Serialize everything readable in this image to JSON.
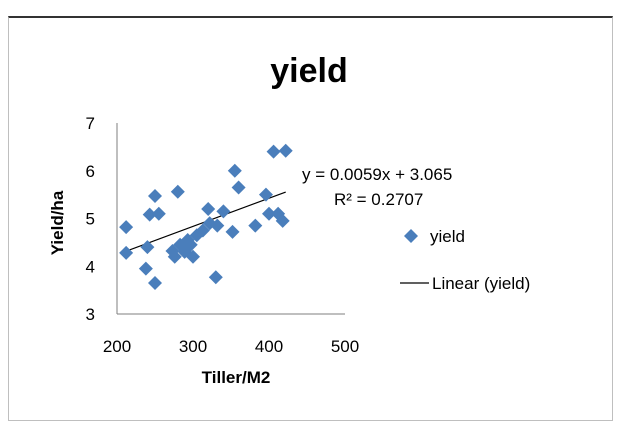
{
  "chart_data": {
    "type": "scatter",
    "title": "yield",
    "xlabel": "Tiller/M2",
    "ylabel": "Yield/ha",
    "xlim": [
      200,
      500
    ],
    "ylim": [
      3,
      7
    ],
    "x_ticks": [
      "200",
      "300",
      "400",
      "500"
    ],
    "y_ticks": [
      "3",
      "4",
      "5",
      "6",
      "7"
    ],
    "grid": false,
    "legend_position": "right",
    "colors": {
      "points": "#4a7ebb",
      "trendline": "#000000",
      "axes": "#7f7f7f"
    },
    "series": [
      {
        "name": "yield",
        "marker": "diamond",
        "points": [
          {
            "x": 212,
            "y": 4.82
          },
          {
            "x": 212,
            "y": 4.28
          },
          {
            "x": 238,
            "y": 3.95
          },
          {
            "x": 240,
            "y": 4.4
          },
          {
            "x": 243,
            "y": 5.08
          },
          {
            "x": 250,
            "y": 5.47
          },
          {
            "x": 250,
            "y": 3.65
          },
          {
            "x": 255,
            "y": 5.1
          },
          {
            "x": 273,
            "y": 4.32
          },
          {
            "x": 276,
            "y": 4.2
          },
          {
            "x": 280,
            "y": 5.56
          },
          {
            "x": 283,
            "y": 4.45
          },
          {
            "x": 289,
            "y": 4.3
          },
          {
            "x": 293,
            "y": 4.55
          },
          {
            "x": 297,
            "y": 4.45
          },
          {
            "x": 300,
            "y": 4.2
          },
          {
            "x": 305,
            "y": 4.65
          },
          {
            "x": 313,
            "y": 4.75
          },
          {
            "x": 320,
            "y": 5.2
          },
          {
            "x": 322,
            "y": 4.9
          },
          {
            "x": 330,
            "y": 3.77
          },
          {
            "x": 332,
            "y": 4.85
          },
          {
            "x": 340,
            "y": 5.15
          },
          {
            "x": 352,
            "y": 4.72
          },
          {
            "x": 355,
            "y": 6.0
          },
          {
            "x": 360,
            "y": 5.65
          },
          {
            "x": 382,
            "y": 4.85
          },
          {
            "x": 396,
            "y": 5.5
          },
          {
            "x": 400,
            "y": 5.1
          },
          {
            "x": 406,
            "y": 6.4
          },
          {
            "x": 412,
            "y": 5.1
          },
          {
            "x": 418,
            "y": 4.95
          },
          {
            "x": 422,
            "y": 6.42
          }
        ]
      },
      {
        "name": "Linear (yield)",
        "line": {
          "slope": 0.0059,
          "intercept": 3.065,
          "x_range": [
            212,
            422
          ]
        }
      }
    ],
    "annotations": {
      "equation": "y = 0.0059x + 3.065",
      "r_squared": "R² = 0.2707"
    }
  }
}
